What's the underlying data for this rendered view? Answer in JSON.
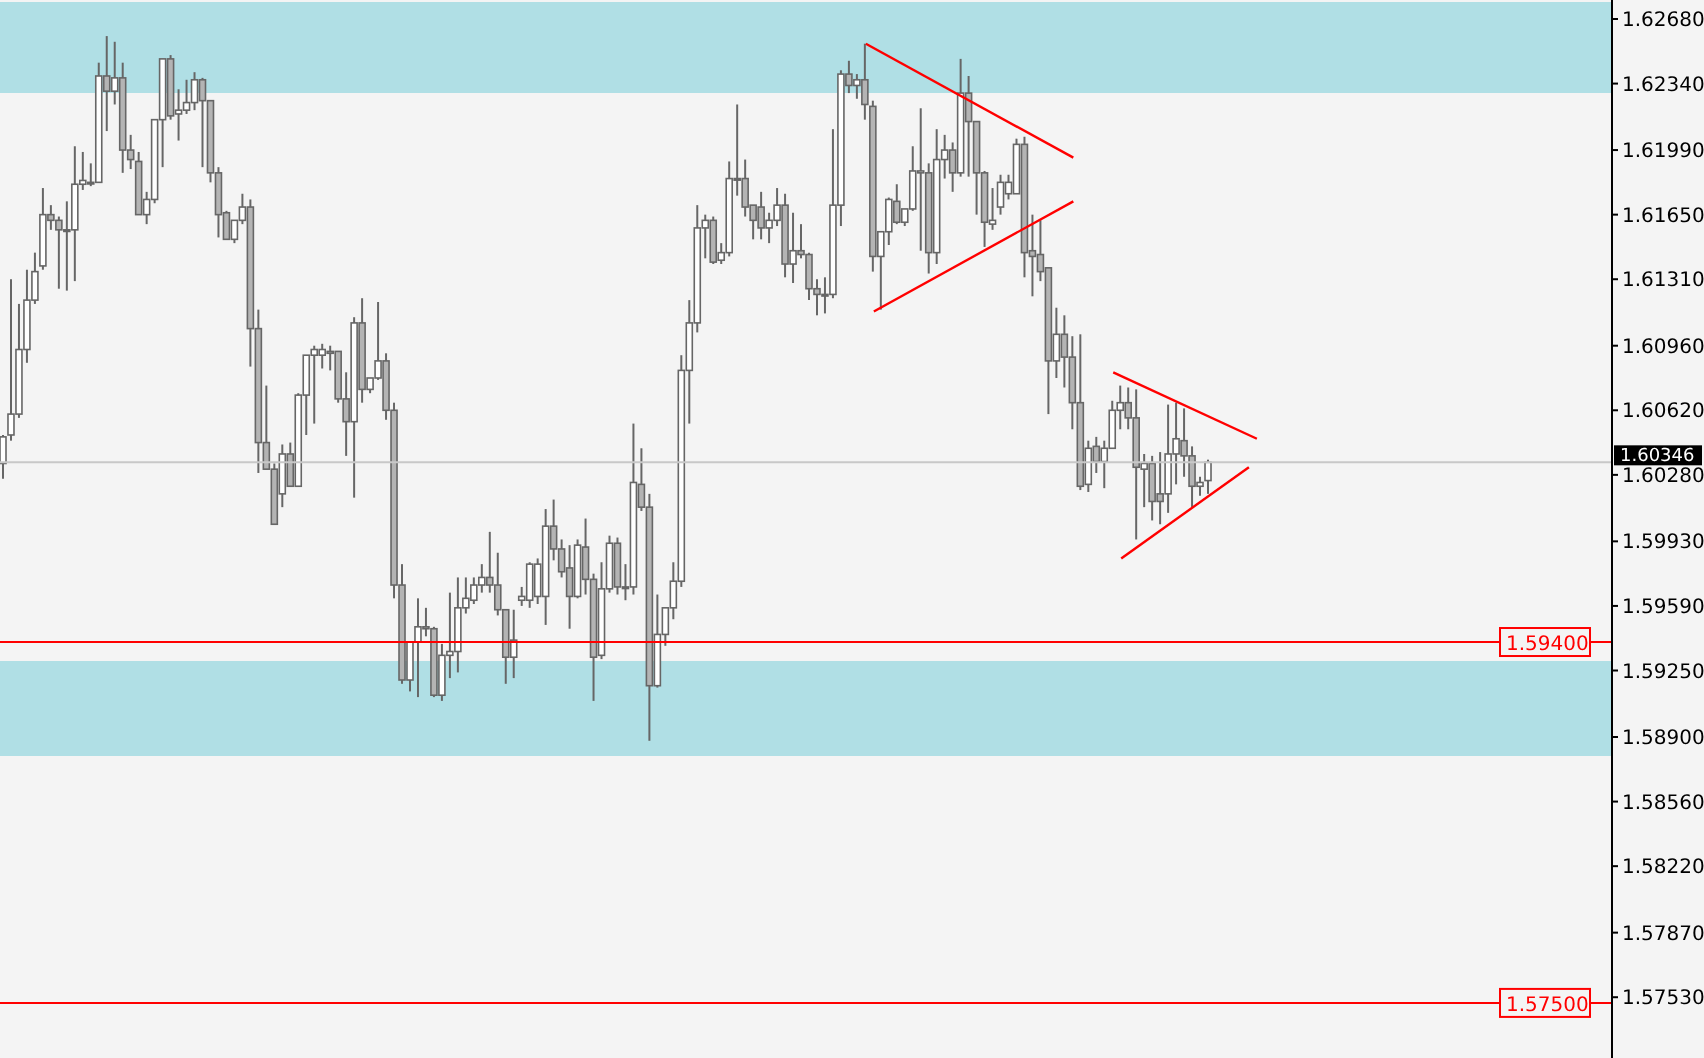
{
  "chart_data": {
    "type": "candlestick",
    "color": "#666666",
    "categories": [
      null,
      null,
      null,
      null,
      null,
      null,
      null,
      null,
      null,
      null,
      null,
      null,
      null,
      null,
      null,
      null,
      null,
      null,
      null,
      null,
      null,
      null,
      null,
      null,
      null,
      null,
      null,
      null,
      null,
      null,
      null,
      null,
      null,
      null,
      null,
      null,
      null,
      null,
      null,
      null,
      null,
      null,
      null,
      null,
      null,
      null,
      null,
      null,
      null,
      null,
      null,
      null,
      null,
      null,
      null,
      null,
      null,
      null,
      null,
      null,
      null,
      null,
      null,
      null,
      null,
      null,
      null,
      null,
      null,
      null,
      null,
      null,
      null,
      null,
      null,
      null,
      null,
      null,
      null,
      null,
      null,
      null,
      null,
      null,
      null,
      null,
      null,
      null,
      null,
      null,
      null,
      null,
      null,
      null,
      null,
      null,
      null,
      null,
      null,
      null,
      null,
      null,
      null,
      null,
      null,
      null,
      null,
      null,
      null,
      null,
      null,
      null,
      null,
      null,
      null,
      null,
      null,
      null,
      null,
      null,
      null,
      null,
      null,
      null,
      null,
      null,
      null,
      null,
      null,
      null,
      null,
      null,
      null,
      null,
      null,
      null,
      null,
      null,
      null,
      null,
      null,
      null,
      null,
      null,
      null,
      null,
      null,
      null,
      null,
      null,
      null,
      null,
      null,
      null,
      null,
      null,
      null,
      null,
      null,
      null,
      null,
      null,
      null,
      null,
      null,
      null,
      null,
      null,
      null,
      null,
      null,
      null,
      null,
      null,
      null,
      null,
      null,
      null,
      null,
      null,
      null,
      null,
      null,
      null,
      null,
      null,
      null,
      null,
      null,
      null,
      null,
      null,
      null,
      null,
      null,
      null,
      null,
      null,
      null,
      null,
      null,
      null
    ],
    "ohlc": [
      [
        1.6034,
        1.6049,
        1.6026,
        1.6048
      ],
      [
        1.6049,
        1.6131,
        1.6046,
        1.606
      ],
      [
        1.606,
        1.6118,
        1.6058,
        1.6094
      ],
      [
        1.6094,
        1.6136,
        1.6087,
        1.612
      ],
      [
        1.612,
        1.6145,
        1.6118,
        1.6135
      ],
      [
        1.6138,
        1.6179,
        1.6136,
        1.6165
      ],
      [
        1.6165,
        1.617,
        1.6157,
        1.6162
      ],
      [
        1.6162,
        1.6164,
        1.6126,
        1.6157
      ],
      [
        1.6157,
        1.6172,
        1.6125,
        1.6157
      ],
      [
        1.6157,
        1.6201,
        1.613,
        1.6181
      ],
      [
        1.6181,
        1.6198,
        1.6178,
        1.6183
      ],
      [
        1.6182,
        1.6192,
        1.618,
        1.6182
      ],
      [
        1.6182,
        1.6245,
        1.6182,
        1.6238
      ],
      [
        1.6238,
        1.6259,
        1.6209,
        1.623
      ],
      [
        1.623,
        1.6256,
        1.6223,
        1.6237
      ],
      [
        1.6237,
        1.6245,
        1.6187,
        1.6199
      ],
      [
        1.6199,
        1.6207,
        1.6189,
        1.6194
      ],
      [
        1.6193,
        1.6198,
        1.6165,
        1.6165
      ],
      [
        1.6165,
        1.6177,
        1.616,
        1.6173
      ],
      [
        1.6173,
        1.6215,
        1.6171,
        1.6215
      ],
      [
        1.6215,
        1.6247,
        1.619,
        1.6247
      ],
      [
        1.6247,
        1.6249,
        1.6215,
        1.6217
      ],
      [
        1.6218,
        1.6231,
        1.6204,
        1.622
      ],
      [
        1.622,
        1.6236,
        1.6218,
        1.6224
      ],
      [
        1.6224,
        1.624,
        1.622,
        1.6236
      ],
      [
        1.6236,
        1.6237,
        1.619,
        1.6225
      ],
      [
        1.6225,
        1.6225,
        1.6182,
        1.6187
      ],
      [
        1.6187,
        1.619,
        1.6153,
        1.6165
      ],
      [
        1.6166,
        1.6167,
        1.6152,
        1.6152
      ],
      [
        1.6152,
        1.6162,
        1.615,
        1.6162
      ],
      [
        1.6162,
        1.6176,
        1.616,
        1.6169
      ],
      [
        1.6169,
        1.6173,
        1.6085,
        1.6105
      ],
      [
        1.6105,
        1.6115,
        1.6029,
        1.6045
      ],
      [
        1.6045,
        1.6075,
        1.6031,
        1.6031
      ],
      [
        1.6031,
        1.6034,
        1.6002,
        1.6002
      ],
      [
        1.6018,
        1.6044,
        1.6011,
        1.6039
      ],
      [
        1.6039,
        1.6045,
        1.6022,
        1.6022
      ],
      [
        1.6022,
        1.6071,
        1.6022,
        1.607
      ],
      [
        1.607,
        1.6091,
        1.6049,
        1.6091
      ],
      [
        1.6091,
        1.6096,
        1.6055,
        1.6094
      ],
      [
        1.6091,
        1.6097,
        1.6084,
        1.6094
      ],
      [
        1.6093,
        1.6096,
        1.6083,
        1.6092
      ],
      [
        1.6093,
        1.6093,
        1.6066,
        1.6068
      ],
      [
        1.6068,
        1.6082,
        1.6038,
        1.6056
      ],
      [
        1.6056,
        1.6111,
        1.6016,
        1.6108
      ],
      [
        1.6108,
        1.6121,
        1.6066,
        1.6073
      ],
      [
        1.6073,
        1.6079,
        1.6071,
        1.6079
      ],
      [
        1.6079,
        1.6119,
        1.6078,
        1.6088
      ],
      [
        1.6088,
        1.6092,
        1.6057,
        1.6062
      ],
      [
        1.6062,
        1.6066,
        1.5963,
        1.597
      ],
      [
        1.597,
        1.5981,
        1.5918,
        1.592
      ],
      [
        1.592,
        1.594,
        1.5914,
        1.594
      ],
      [
        1.594,
        1.5963,
        1.5911,
        1.5948
      ],
      [
        1.5948,
        1.5958,
        1.5943,
        1.5947
      ],
      [
        1.5947,
        1.5948,
        1.5911,
        1.5912
      ],
      [
        1.5912,
        1.5939,
        1.5909,
        1.5933
      ],
      [
        1.5933,
        1.5966,
        1.5921,
        1.5935
      ],
      [
        1.5935,
        1.5974,
        1.5924,
        1.5958
      ],
      [
        1.5958,
        1.5974,
        1.5955,
        1.5963
      ],
      [
        1.5962,
        1.5974,
        1.596,
        1.597
      ],
      [
        1.597,
        1.5981,
        1.5966,
        1.5974
      ],
      [
        1.5974,
        1.5998,
        1.5966,
        1.597
      ],
      [
        1.597,
        1.5987,
        1.5954,
        1.5957
      ],
      [
        1.5957,
        1.5957,
        1.5918,
        1.5932
      ],
      [
        1.5932,
        1.5957,
        1.5921,
        1.5941
      ],
      [
        1.5962,
        1.5969,
        1.5959,
        1.5964
      ],
      [
        1.5962,
        1.5982,
        1.5958,
        1.5981
      ],
      [
        1.5964,
        1.5984,
        1.596,
        1.5981
      ],
      [
        1.5964,
        1.601,
        1.5949,
        1.6001
      ],
      [
        1.6001,
        1.6015,
        1.5983,
        1.5989
      ],
      [
        1.5989,
        1.5994,
        1.5974,
        1.5977
      ],
      [
        1.5979,
        1.5991,
        1.5947,
        1.5964
      ],
      [
        1.5964,
        1.5994,
        1.5963,
        1.5991
      ],
      [
        1.599,
        1.6005,
        1.5965,
        1.5973
      ],
      [
        1.5973,
        1.5976,
        1.5909,
        1.5932
      ],
      [
        1.5933,
        1.5982,
        1.5931,
        1.5968
      ],
      [
        1.5968,
        1.5996,
        1.5966,
        1.5992
      ],
      [
        1.5992,
        1.5995,
        1.5965,
        1.5969
      ],
      [
        1.5969,
        1.5981,
        1.5962,
        1.5969
      ],
      [
        1.5969,
        1.6055,
        1.5965,
        1.6024
      ],
      [
        1.6023,
        1.6042,
        1.6009,
        1.6011
      ],
      [
        1.6011,
        1.6018,
        1.5888,
        1.5917
      ],
      [
        1.5917,
        1.5965,
        1.5916,
        1.5944
      ],
      [
        1.5944,
        1.5958,
        1.5938,
        1.5958
      ],
      [
        1.5958,
        1.5982,
        1.5952,
        1.5972
      ],
      [
        1.5972,
        1.6091,
        1.5969,
        1.6083
      ],
      [
        1.6083,
        1.612,
        1.6055,
        1.6108
      ],
      [
        1.6108,
        1.617,
        1.6103,
        1.6158
      ],
      [
        1.6158,
        1.6165,
        1.6142,
        1.6162
      ],
      [
        1.6162,
        1.6164,
        1.6139,
        1.614
      ],
      [
        1.6141,
        1.615,
        1.6139,
        1.6145
      ],
      [
        1.6145,
        1.6193,
        1.6143,
        1.6184
      ],
      [
        1.6184,
        1.6223,
        1.6175,
        1.6184
      ],
      [
        1.6184,
        1.6194,
        1.6164,
        1.6169
      ],
      [
        1.617,
        1.617,
        1.6152,
        1.6162
      ],
      [
        1.6169,
        1.6177,
        1.6152,
        1.6158
      ],
      [
        1.6158,
        1.6166,
        1.615,
        1.6162
      ],
      [
        1.6162,
        1.6179,
        1.6159,
        1.617
      ],
      [
        1.617,
        1.6176,
        1.6132,
        1.6139
      ],
      [
        1.6139,
        1.6166,
        1.6129,
        1.6146
      ],
      [
        1.6146,
        1.616,
        1.6142,
        1.6144
      ],
      [
        1.6144,
        1.6145,
        1.612,
        1.6126
      ],
      [
        1.6126,
        1.6131,
        1.6112,
        1.6123
      ],
      [
        1.6123,
        1.6132,
        1.6113,
        1.6123
      ],
      [
        1.6123,
        1.621,
        1.6121,
        1.617
      ],
      [
        1.617,
        1.6241,
        1.6159,
        1.6239
      ],
      [
        1.6239,
        1.6246,
        1.6229,
        1.6233
      ],
      [
        1.6233,
        1.6239,
        1.6226,
        1.6236
      ],
      [
        1.6236,
        1.6255,
        1.6215,
        1.6223
      ],
      [
        1.6222,
        1.6225,
        1.6135,
        1.6143
      ],
      [
        1.6143,
        1.6156,
        1.6115,
        1.6156
      ],
      [
        1.6156,
        1.6174,
        1.6149,
        1.6173
      ],
      [
        1.6172,
        1.6181,
        1.616,
        1.6161
      ],
      [
        1.6161,
        1.6168,
        1.6159,
        1.6168
      ],
      [
        1.6168,
        1.6201,
        1.6167,
        1.6188
      ],
      [
        1.6187,
        1.6221,
        1.6146,
        1.6188
      ],
      [
        1.6187,
        1.6192,
        1.6134,
        1.6145
      ],
      [
        1.6145,
        1.621,
        1.6139,
        1.6194
      ],
      [
        1.6194,
        1.6207,
        1.6184,
        1.6199
      ],
      [
        1.6199,
        1.6203,
        1.6177,
        1.6187
      ],
      [
        1.6187,
        1.6247,
        1.6185,
        1.6229
      ],
      [
        1.6229,
        1.6238,
        1.6185,
        1.6214
      ],
      [
        1.6214,
        1.6214,
        1.6165,
        1.6187
      ],
      [
        1.6187,
        1.6188,
        1.6148,
        1.6161
      ],
      [
        1.616,
        1.6179,
        1.6157,
        1.6162
      ],
      [
        1.6169,
        1.6186,
        1.6165,
        1.6182
      ],
      [
        1.6176,
        1.6186,
        1.6173,
        1.6182
      ],
      [
        1.6176,
        1.6205,
        1.6176,
        1.6202
      ],
      [
        1.6202,
        1.6206,
        1.6132,
        1.6145
      ],
      [
        1.6146,
        1.6165,
        1.6122,
        1.6143
      ],
      [
        1.6144,
        1.6162,
        1.613,
        1.6135
      ],
      [
        1.6137,
        1.6137,
        1.606,
        1.6088
      ],
      [
        1.6088,
        1.6116,
        1.6079,
        1.6102
      ],
      [
        1.6102,
        1.6112,
        1.6074,
        1.609
      ],
      [
        1.609,
        1.6101,
        1.6052,
        1.6066
      ],
      [
        1.6066,
        1.6102,
        1.602,
        1.6022
      ],
      [
        1.6023,
        1.6046,
        1.6019,
        1.6042
      ],
      [
        1.6043,
        1.6048,
        1.6029,
        1.6035
      ],
      [
        1.6035,
        1.6046,
        1.6021,
        1.6042
      ],
      [
        1.6042,
        1.6067,
        1.6042,
        1.6062
      ],
      [
        1.6062,
        1.6075,
        1.6052,
        1.6066
      ],
      [
        1.6066,
        1.6074,
        1.6052,
        1.6058
      ],
      [
        1.6058,
        1.6073,
        1.5994,
        1.6032
      ],
      [
        1.6031,
        1.6039,
        1.6011,
        1.6034
      ],
      [
        1.6034,
        1.6038,
        1.6004,
        1.6014
      ],
      [
        1.6018,
        1.604,
        1.6002,
        1.6014
      ],
      [
        1.6018,
        1.6065,
        1.6008,
        1.6039
      ],
      [
        1.6039,
        1.6066,
        1.6023,
        1.6047
      ],
      [
        1.6046,
        1.6063,
        1.6027,
        1.6038
      ],
      [
        1.6038,
        1.6043,
        1.6011,
        1.6022
      ],
      [
        1.6022,
        1.6027,
        1.6017,
        1.6024
      ],
      [
        1.6025,
        1.6036,
        1.6018,
        1.60346
      ],
      null,
      null,
      null,
      null,
      null,
      null,
      null,
      null,
      null,
      null,
      null,
      null,
      null,
      null,
      null,
      null,
      null,
      null,
      null,
      null,
      null,
      null,
      null,
      null,
      null,
      null,
      null,
      null,
      null,
      null,
      null,
      null,
      null,
      null,
      null,
      null,
      null,
      null,
      null,
      null,
      null,
      null,
      null,
      null,
      null,
      null,
      null,
      null,
      null,
      null
    ],
    "series": [
      {
        "type": "line",
        "color": "#ff0000",
        "values": [
          null,
          null,
          null,
          null,
          null,
          null,
          null,
          null,
          null,
          null,
          null,
          null,
          null,
          null,
          null,
          null,
          null,
          null,
          null,
          null,
          null,
          null,
          null,
          null,
          null,
          null,
          null,
          null,
          null,
          null,
          null,
          null,
          null,
          null,
          null,
          null,
          null,
          null,
          null,
          null,
          null,
          null,
          null,
          null,
          null,
          null,
          null,
          null,
          null,
          null,
          null,
          null,
          null,
          null,
          null,
          null,
          null,
          null,
          null,
          null,
          null,
          null,
          null,
          null,
          null,
          null,
          null,
          null,
          null,
          null,
          null,
          null,
          null,
          null,
          null,
          null,
          null,
          null,
          null,
          null,
          null,
          null,
          null,
          null,
          null,
          null,
          null,
          null,
          null,
          null,
          null,
          null,
          null,
          null,
          null,
          null,
          null,
          null,
          null,
          null,
          null,
          null,
          null,
          null,
          null,
          null,
          null,
          null,
          1.6255,
          null,
          null,
          null,
          null,
          null,
          null,
          null,
          null,
          null,
          null,
          null,
          null,
          null,
          null,
          null,
          null,
          null,
          null,
          null,
          null,
          null,
          null,
          null,
          null,
          null,
          1.6195,
          null,
          null,
          null,
          null,
          null,
          null,
          null,
          null,
          null,
          null,
          null,
          null,
          null,
          null,
          null,
          null,
          null,
          null,
          null,
          null,
          null,
          null,
          null,
          null,
          null,
          null,
          null,
          null,
          null,
          null,
          null,
          null,
          null,
          null,
          null,
          null,
          null,
          null,
          null,
          null,
          null,
          null,
          null,
          null,
          null,
          null,
          null,
          null,
          null,
          null,
          null,
          null,
          null,
          null,
          null,
          null,
          null,
          null,
          null,
          null,
          null,
          null,
          null,
          null,
          null,
          null,
          null
        ]
      },
      {
        "type": "line",
        "color": "#ff0000",
        "values": [
          null,
          null,
          null,
          null,
          null,
          null,
          null,
          null,
          null,
          null,
          null,
          null,
          null,
          null,
          null,
          null,
          null,
          null,
          null,
          null,
          null,
          null,
          null,
          null,
          null,
          null,
          null,
          null,
          null,
          null,
          null,
          null,
          null,
          null,
          null,
          null,
          null,
          null,
          null,
          null,
          null,
          null,
          null,
          null,
          null,
          null,
          null,
          null,
          null,
          null,
          null,
          null,
          null,
          null,
          null,
          null,
          null,
          null,
          null,
          null,
          null,
          null,
          null,
          null,
          null,
          null,
          null,
          null,
          null,
          null,
          null,
          null,
          null,
          null,
          null,
          null,
          null,
          null,
          null,
          null,
          null,
          null,
          null,
          null,
          null,
          null,
          null,
          null,
          null,
          null,
          null,
          null,
          null,
          null,
          null,
          null,
          null,
          null,
          null,
          null,
          null,
          null,
          null,
          null,
          null,
          null,
          null,
          null,
          null,
          1.6114,
          null,
          null,
          null,
          null,
          null,
          null,
          null,
          null,
          null,
          null,
          null,
          null,
          null,
          null,
          null,
          null,
          null,
          null,
          null,
          null,
          null,
          null,
          null,
          null,
          1.6172,
          null,
          null,
          null,
          null,
          null,
          null,
          null,
          null,
          null,
          null,
          null,
          null,
          null,
          null,
          null,
          null,
          null,
          null,
          null,
          null,
          null,
          null,
          null,
          null,
          null,
          null,
          null,
          null,
          null,
          null,
          null,
          null,
          null,
          null,
          null,
          null,
          null,
          null,
          null,
          null,
          null,
          null,
          null,
          null,
          null,
          null,
          null,
          null,
          null,
          null,
          null,
          null,
          null,
          null,
          null,
          null,
          null,
          null,
          null,
          null,
          null,
          null,
          null,
          null,
          null,
          null,
          null
        ]
      },
      {
        "type": "line",
        "color": "#ff0000",
        "values": [
          null,
          null,
          null,
          null,
          null,
          null,
          null,
          null,
          null,
          null,
          null,
          null,
          null,
          null,
          null,
          null,
          null,
          null,
          null,
          null,
          null,
          null,
          null,
          null,
          null,
          null,
          null,
          null,
          null,
          null,
          null,
          null,
          null,
          null,
          null,
          null,
          null,
          null,
          null,
          null,
          null,
          null,
          null,
          null,
          null,
          null,
          null,
          null,
          null,
          null,
          null,
          null,
          null,
          null,
          null,
          null,
          null,
          null,
          null,
          null,
          null,
          null,
          null,
          null,
          null,
          null,
          null,
          null,
          null,
          null,
          null,
          null,
          null,
          null,
          null,
          null,
          null,
          null,
          null,
          null,
          null,
          null,
          null,
          null,
          null,
          null,
          null,
          null,
          null,
          null,
          null,
          null,
          null,
          null,
          null,
          null,
          null,
          null,
          null,
          null,
          null,
          null,
          null,
          null,
          null,
          null,
          null,
          null,
          null,
          null,
          null,
          null,
          null,
          null,
          null,
          null,
          null,
          null,
          null,
          null,
          null,
          null,
          null,
          null,
          null,
          null,
          null,
          null,
          null,
          null,
          null,
          null,
          null,
          null,
          null,
          null,
          null,
          null,
          null,
          1.6082,
          null,
          null,
          null,
          null,
          null,
          null,
          null,
          null,
          null,
          null,
          null,
          null,
          null,
          null,
          null,
          null,
          null,
          1.6047,
          null,
          null,
          null,
          null,
          null,
          null,
          null,
          null,
          null,
          null,
          null,
          null,
          null,
          null,
          null,
          null,
          null,
          null,
          null,
          null,
          null,
          null,
          null,
          null,
          null,
          null,
          null,
          null,
          null,
          null,
          null,
          null,
          null,
          null,
          null,
          null,
          null,
          null,
          null,
          null,
          null,
          null,
          null,
          null
        ]
      },
      {
        "type": "line",
        "color": "#ff0000",
        "values": [
          null,
          null,
          null,
          null,
          null,
          null,
          null,
          null,
          null,
          null,
          null,
          null,
          null,
          null,
          null,
          null,
          null,
          null,
          null,
          null,
          null,
          null,
          null,
          null,
          null,
          null,
          null,
          null,
          null,
          null,
          null,
          null,
          null,
          null,
          null,
          null,
          null,
          null,
          null,
          null,
          null,
          null,
          null,
          null,
          null,
          null,
          null,
          null,
          null,
          null,
          null,
          null,
          null,
          null,
          null,
          null,
          null,
          null,
          null,
          null,
          null,
          null,
          null,
          null,
          null,
          null,
          null,
          null,
          null,
          null,
          null,
          null,
          null,
          null,
          null,
          null,
          null,
          null,
          null,
          null,
          null,
          null,
          null,
          null,
          null,
          null,
          null,
          null,
          null,
          null,
          null,
          null,
          null,
          null,
          null,
          null,
          null,
          null,
          null,
          null,
          null,
          null,
          null,
          null,
          null,
          null,
          null,
          null,
          null,
          null,
          null,
          null,
          null,
          null,
          null,
          null,
          null,
          null,
          null,
          null,
          null,
          null,
          null,
          null,
          null,
          null,
          null,
          null,
          null,
          null,
          null,
          null,
          null,
          null,
          null,
          null,
          null,
          null,
          null,
          null,
          1.5984,
          null,
          null,
          null,
          null,
          null,
          null,
          null,
          null,
          null,
          null,
          null,
          null,
          null,
          null,
          null,
          1.6032,
          null,
          null,
          null,
          null,
          null,
          null,
          null,
          null,
          null,
          null,
          null,
          null,
          null,
          null,
          null,
          null,
          null,
          null,
          null,
          null,
          null,
          null,
          null,
          null,
          null,
          null,
          null,
          null,
          null,
          null,
          null,
          null,
          null,
          null,
          null,
          null,
          null,
          null,
          null,
          null,
          null,
          null,
          null,
          null,
          null
        ]
      }
    ],
    "ylim": [
      1.5721,
      1.6278
    ],
    "yticks": [
      {
        "value": 1.6268,
        "label": "1.62680"
      },
      {
        "value": 1.6234,
        "label": "1.62340"
      },
      {
        "value": 1.6199,
        "label": "1.61990"
      },
      {
        "value": 1.6165,
        "label": "1.61650"
      },
      {
        "value": 1.6131,
        "label": "1.61310"
      },
      {
        "value": 1.6096,
        "label": "1.60960"
      },
      {
        "value": 1.6062,
        "label": "1.60620"
      },
      {
        "value": 1.6028,
        "label": "1.60280"
      },
      {
        "value": 1.5993,
        "label": "1.59930"
      },
      {
        "value": 1.5959,
        "label": "1.59590"
      },
      {
        "value": 1.5925,
        "label": "1.59250"
      },
      {
        "value": 1.589,
        "label": "1.58900"
      },
      {
        "value": 1.5856,
        "label": "1.58560"
      },
      {
        "value": 1.5822,
        "label": "1.58220"
      },
      {
        "value": 1.5787,
        "label": "1.57870"
      },
      {
        "value": 1.5753,
        "label": "1.57530"
      }
    ],
    "tick_labels": "y",
    "ref_lines": [
      {
        "axis": "y",
        "value": 1.60346,
        "label": "1.60346",
        "color": "#c8c8c8"
      },
      {
        "axis": "y",
        "value": 1.594,
        "label": "1.59400",
        "color": "#ff0000"
      },
      {
        "axis": "y",
        "value": 1.575,
        "label": "1.57500",
        "color": "#ff0000"
      }
    ],
    "bands": [
      {
        "axis": "y",
        "from": 1.6229,
        "to": 1.6277,
        "color": "#b0dfe5"
      },
      {
        "axis": "y",
        "from": 1.588,
        "to": 1.593,
        "color": "#b0dfe5"
      }
    ]
  }
}
